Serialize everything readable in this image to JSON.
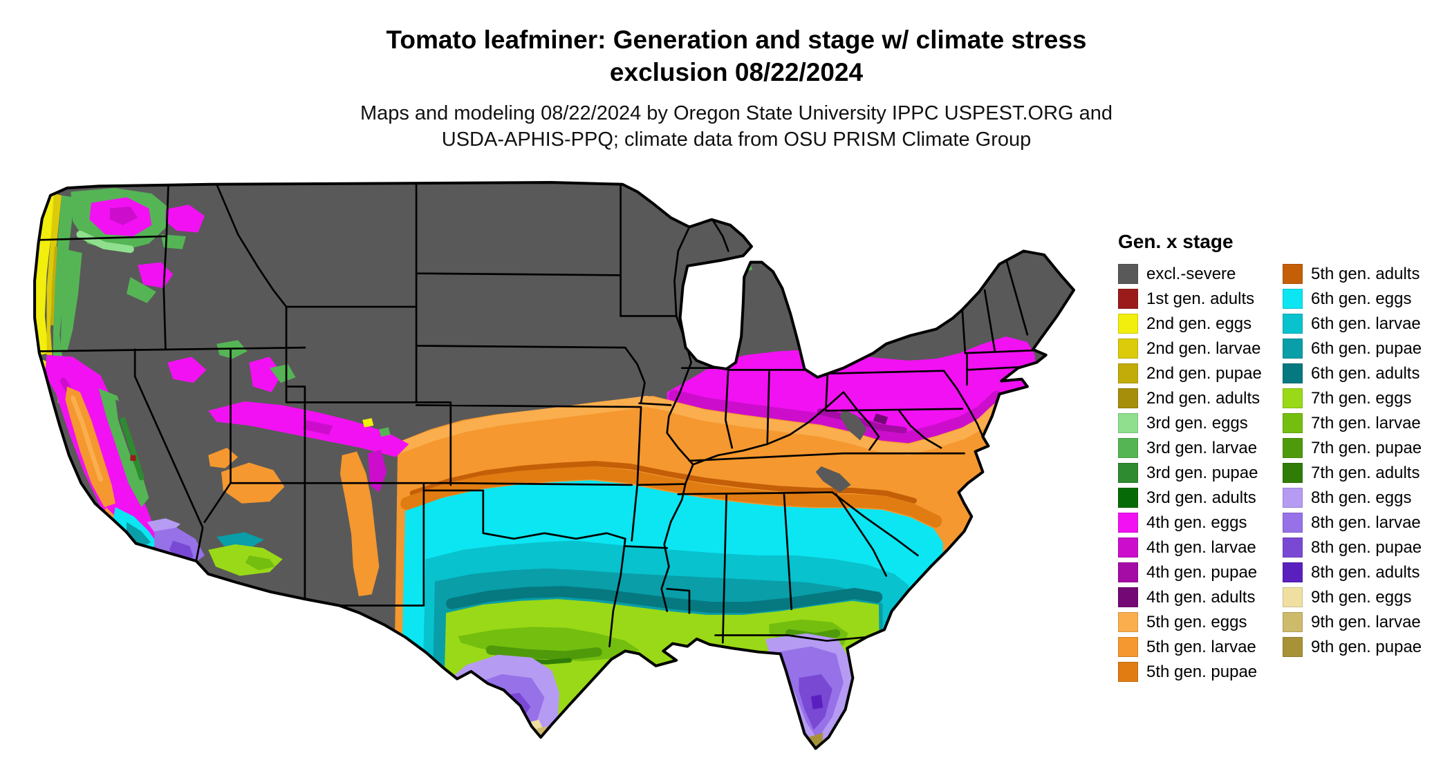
{
  "header": {
    "title_line1": "Tomato leafminer: Generation and stage w/ climate stress",
    "title_line2": "exclusion 08/22/2024",
    "subtitle_line1": "Maps and modeling 08/22/2024 by Oregon State University IPPC USPEST.ORG and",
    "subtitle_line2": "USDA-APHIS-PPQ; climate data from OSU PRISM Climate Group"
  },
  "legend": {
    "title": "Gen. x stage",
    "columns": [
      [
        {
          "label": "excl.-severe",
          "color": "excl_severe"
        },
        {
          "label": "1st gen. adults",
          "color": "gen1_adults"
        },
        {
          "label": "2nd gen. eggs",
          "color": "gen2_eggs"
        },
        {
          "label": "2nd gen. larvae",
          "color": "gen2_larvae"
        },
        {
          "label": "2nd gen. pupae",
          "color": "gen2_pupae"
        },
        {
          "label": "2nd gen. adults",
          "color": "gen2_adults"
        },
        {
          "label": "3rd gen. eggs",
          "color": "gen3_eggs"
        },
        {
          "label": "3rd gen. larvae",
          "color": "gen3_larvae"
        },
        {
          "label": "3rd gen. pupae",
          "color": "gen3_pupae"
        },
        {
          "label": "3rd gen. adults",
          "color": "gen3_adults"
        },
        {
          "label": "4th gen. eggs",
          "color": "gen4_eggs"
        },
        {
          "label": "4th gen. larvae",
          "color": "gen4_larvae"
        },
        {
          "label": "4th gen. pupae",
          "color": "gen4_pupae"
        },
        {
          "label": "4th gen. adults",
          "color": "gen4_adults"
        },
        {
          "label": "5th gen. eggs",
          "color": "gen5_eggs"
        },
        {
          "label": "5th gen. larvae",
          "color": "gen5_larvae"
        },
        {
          "label": "5th gen. pupae",
          "color": "gen5_pupae"
        }
      ],
      [
        {
          "label": "5th gen. adults",
          "color": "gen5_adults"
        },
        {
          "label": "6th gen. eggs",
          "color": "gen6_eggs"
        },
        {
          "label": "6th gen. larvae",
          "color": "gen6_larvae"
        },
        {
          "label": "6th gen. pupae",
          "color": "gen6_pupae"
        },
        {
          "label": "6th gen. adults",
          "color": "gen6_adults"
        },
        {
          "label": "7th gen. eggs",
          "color": "gen7_eggs"
        },
        {
          "label": "7th gen. larvae",
          "color": "gen7_larvae"
        },
        {
          "label": "7th gen. pupae",
          "color": "gen7_pupae"
        },
        {
          "label": "7th gen. adults",
          "color": "gen7_adults"
        },
        {
          "label": "8th gen. eggs",
          "color": "gen8_eggs"
        },
        {
          "label": "8th gen. larvae",
          "color": "gen8_larvae"
        },
        {
          "label": "8th gen. pupae",
          "color": "gen8_pupae"
        },
        {
          "label": "8th gen. adults",
          "color": "gen8_adults"
        },
        {
          "label": "9th gen. eggs",
          "color": "gen9_eggs"
        },
        {
          "label": "9th gen. larvae",
          "color": "gen9_larvae"
        },
        {
          "label": "9th gen. pupae",
          "color": "gen9_pupae"
        }
      ]
    ]
  },
  "colors": {
    "excl_severe": "#595959",
    "gen1_adults": "#9B1B1B",
    "gen2_eggs": "#F2EE0D",
    "gen2_larvae": "#DCCB0A",
    "gen2_pupae": "#C2AC09",
    "gen2_adults": "#A78E0A",
    "gen3_eggs": "#8FDF8F",
    "gen3_larvae": "#55B555",
    "gen3_pupae": "#2F8B30",
    "gen3_adults": "#066B06",
    "gen4_eggs": "#F211F2",
    "gen4_larvae": "#CC0ECC",
    "gen4_pupae": "#A50BA5",
    "gen4_adults": "#740874",
    "gen5_eggs": "#FBAE4E",
    "gen5_larvae": "#F4982F",
    "gen5_pupae": "#E07C12",
    "gen5_adults": "#C45F08",
    "gen6_eggs": "#0BE6F2",
    "gen6_larvae": "#08C2CE",
    "gen6_pupae": "#099EA8",
    "gen6_adults": "#067880",
    "gen7_eggs": "#99D917",
    "gen7_larvae": "#74BE0F",
    "gen7_pupae": "#4F9A0B",
    "gen7_adults": "#2F7D06",
    "gen8_eggs": "#B59BF2",
    "gen8_larvae": "#9771E8",
    "gen8_pupae": "#7A49D4",
    "gen8_adults": "#5A20BE",
    "gen9_eggs": "#EFE0A2",
    "gen9_larvae": "#CDBA6B",
    "gen9_pupae": "#A89238"
  }
}
